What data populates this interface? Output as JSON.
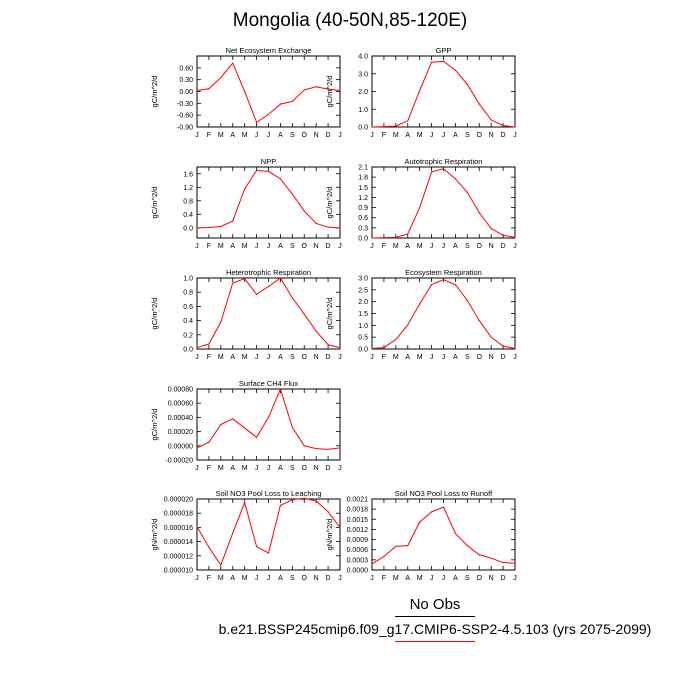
{
  "page": {
    "title": "Mongolia (40-50N,85-120E)",
    "legend": {
      "obs_label": "No Obs",
      "obs_color": "#000000",
      "case_label": "b.e21.BSSP245cmip6.f09_g17.CMIP6-SSP2-4.5.103 (yrs 2075-2099)",
      "case_color": "#ff0000"
    }
  },
  "chart_data": [
    {
      "type": "line",
      "title": "Net Ecosystem Exchange",
      "ylabel": "gC/m^2/d",
      "categories": [
        "J",
        "F",
        "M",
        "A",
        "M",
        "J",
        "J",
        "A",
        "S",
        "O",
        "N",
        "D",
        "J"
      ],
      "ylim": [
        -0.9,
        0.9
      ],
      "yticks": [
        -0.9,
        -0.6,
        -0.3,
        0.0,
        0.3,
        0.6
      ],
      "ytick_labels": [
        "-0.90",
        "-0.60",
        "-0.30",
        "0.00",
        "0.30",
        "0.60"
      ],
      "series": [
        {
          "values": [
            0.03,
            0.07,
            0.35,
            0.72,
            0.0,
            -0.78,
            -0.58,
            -0.32,
            -0.25,
            0.04,
            0.12,
            0.06,
            0.03
          ]
        }
      ]
    },
    {
      "type": "line",
      "title": "GPP",
      "ylabel": "gC/m^2/d",
      "categories": [
        "J",
        "F",
        "M",
        "A",
        "M",
        "J",
        "J",
        "A",
        "S",
        "O",
        "N",
        "D",
        "J"
      ],
      "ylim": [
        0,
        4.0
      ],
      "yticks": [
        0,
        1.0,
        2.0,
        3.0,
        4.0
      ],
      "ytick_labels": [
        "0.0",
        "1.0",
        "2.0",
        "3.0",
        "4.0"
      ],
      "series": [
        {
          "values": [
            0.0,
            0.02,
            0.05,
            0.35,
            2.05,
            3.65,
            3.7,
            3.2,
            2.4,
            1.3,
            0.4,
            0.08,
            0.0
          ]
        }
      ]
    },
    {
      "type": "line",
      "title": "NPP",
      "ylabel": "gC/m^2/d",
      "categories": [
        "J",
        "F",
        "M",
        "A",
        "M",
        "J",
        "J",
        "A",
        "S",
        "O",
        "N",
        "D",
        "J"
      ],
      "ylim": [
        -0.3,
        1.8
      ],
      "yticks": [
        0.0,
        0.4,
        0.8,
        1.2,
        1.6
      ],
      "ytick_labels": [
        "0.0",
        "0.4",
        "0.8",
        "1.2",
        "1.6"
      ],
      "series": [
        {
          "values": [
            0.0,
            0.01,
            0.04,
            0.2,
            1.15,
            1.7,
            1.67,
            1.45,
            1.0,
            0.5,
            0.13,
            0.02,
            0.0
          ]
        }
      ]
    },
    {
      "type": "line",
      "title": "Autotrophic Respiration",
      "ylabel": "gC/m^2/d",
      "categories": [
        "J",
        "F",
        "M",
        "A",
        "M",
        "J",
        "J",
        "A",
        "S",
        "O",
        "N",
        "D",
        "J"
      ],
      "ylim": [
        0,
        2.1
      ],
      "yticks": [
        0,
        0.3,
        0.6,
        0.9,
        1.2,
        1.5,
        1.8,
        2.1
      ],
      "ytick_labels": [
        "0.0",
        "0.3",
        "0.6",
        "0.9",
        "1.2",
        "1.5",
        "1.8",
        "2.1"
      ],
      "series": [
        {
          "values": [
            0.0,
            0.01,
            0.02,
            0.12,
            0.9,
            1.95,
            2.05,
            1.75,
            1.35,
            0.75,
            0.28,
            0.08,
            0.02
          ]
        }
      ]
    },
    {
      "type": "line",
      "title": "Heterotrophic Respiration",
      "ylabel": "gC/m^2/d",
      "categories": [
        "J",
        "F",
        "M",
        "A",
        "M",
        "J",
        "J",
        "A",
        "S",
        "O",
        "N",
        "D",
        "J"
      ],
      "ylim": [
        0,
        1.0
      ],
      "yticks": [
        0,
        0.2,
        0.4,
        0.6,
        0.8,
        1.0
      ],
      "ytick_labels": [
        "0.0",
        "0.2",
        "0.4",
        "0.6",
        "0.8",
        "1.0"
      ],
      "series": [
        {
          "values": [
            0.02,
            0.07,
            0.38,
            0.93,
            0.99,
            0.77,
            0.88,
            1.0,
            0.72,
            0.49,
            0.25,
            0.06,
            0.02
          ]
        }
      ]
    },
    {
      "type": "line",
      "title": "Ecosystem Respiration",
      "ylabel": "gC/m^2/d",
      "categories": [
        "J",
        "F",
        "M",
        "A",
        "M",
        "J",
        "J",
        "A",
        "S",
        "O",
        "N",
        "D",
        "J"
      ],
      "ylim": [
        0,
        3.0
      ],
      "yticks": [
        0,
        0.5,
        1.0,
        1.5,
        2.0,
        2.5,
        3.0
      ],
      "ytick_labels": [
        "0.0",
        "0.5",
        "1.0",
        "1.5",
        "2.0",
        "2.5",
        "3.0"
      ],
      "series": [
        {
          "values": [
            0.02,
            0.06,
            0.4,
            1.02,
            1.9,
            2.72,
            2.93,
            2.72,
            2.05,
            1.2,
            0.5,
            0.12,
            0.02
          ]
        }
      ]
    },
    {
      "type": "line",
      "title": "Surface CH4 Flux",
      "ylabel": "gC/m^2/d",
      "categories": [
        "J",
        "F",
        "M",
        "A",
        "M",
        "J",
        "J",
        "A",
        "S",
        "O",
        "N",
        "D",
        "J"
      ],
      "ylim": [
        -0.0002,
        0.0008
      ],
      "yticks": [
        -0.0002,
        0.0,
        0.0002,
        0.0004,
        0.0006,
        0.0008
      ],
      "ytick_labels": [
        "-0.00020",
        "0.00000",
        "0.00020",
        "0.00040",
        "0.00060",
        "0.00080"
      ],
      "series": [
        {
          "values": [
            -3e-05,
            5e-05,
            0.0003,
            0.00038,
            0.00025,
            0.00012,
            0.0004,
            0.0008,
            0.00026,
            0.0,
            -4e-05,
            -5e-05,
            -3e-05
          ]
        }
      ]
    },
    {
      "type": "line",
      "title": "Soil NO3 Pool Loss to Leaching",
      "ylabel": "gN/m^2/d",
      "categories": [
        "J",
        "F",
        "M",
        "A",
        "M",
        "J",
        "J",
        "A",
        "S",
        "O",
        "N",
        "D",
        "J"
      ],
      "ylim": [
        1e-05,
        2e-05
      ],
      "yticks": [
        1e-05,
        1.2e-05,
        1.4e-05,
        1.6e-05,
        1.8e-05,
        2e-05
      ],
      "ytick_labels": [
        "0.000010",
        "0.000012",
        "0.000014",
        "0.000016",
        "0.000018",
        "0.000020"
      ],
      "series": [
        {
          "values": [
            1.61e-05,
            1.32e-05,
            1.07e-05,
            1.52e-05,
            1.95e-05,
            1.33e-05,
            1.24e-05,
            1.91e-05,
            1.99e-05,
            2.01e-05,
            1.97e-05,
            1.82e-05,
            1.6e-05
          ]
        }
      ]
    },
    {
      "type": "line",
      "title": "Soil NO3 Pool Loss to Runoff",
      "ylabel": "gN/m^2/d",
      "categories": [
        "J",
        "F",
        "M",
        "A",
        "M",
        "J",
        "J",
        "A",
        "S",
        "O",
        "N",
        "D",
        "J"
      ],
      "ylim": [
        0,
        0.0021
      ],
      "yticks": [
        0,
        0.0003,
        0.0006,
        0.0009,
        0.0012,
        0.0015,
        0.0018,
        0.0021
      ],
      "ytick_labels": [
        "0.0000",
        "0.0003",
        "0.0006",
        "0.0009",
        "0.0012",
        "0.0015",
        "0.0018",
        "0.0021"
      ],
      "series": [
        {
          "values": [
            0.00018,
            0.0004,
            0.0007,
            0.00072,
            0.00142,
            0.00172,
            0.00186,
            0.00108,
            0.00072,
            0.00045,
            0.00035,
            0.00022,
            0.0002
          ]
        }
      ]
    }
  ]
}
